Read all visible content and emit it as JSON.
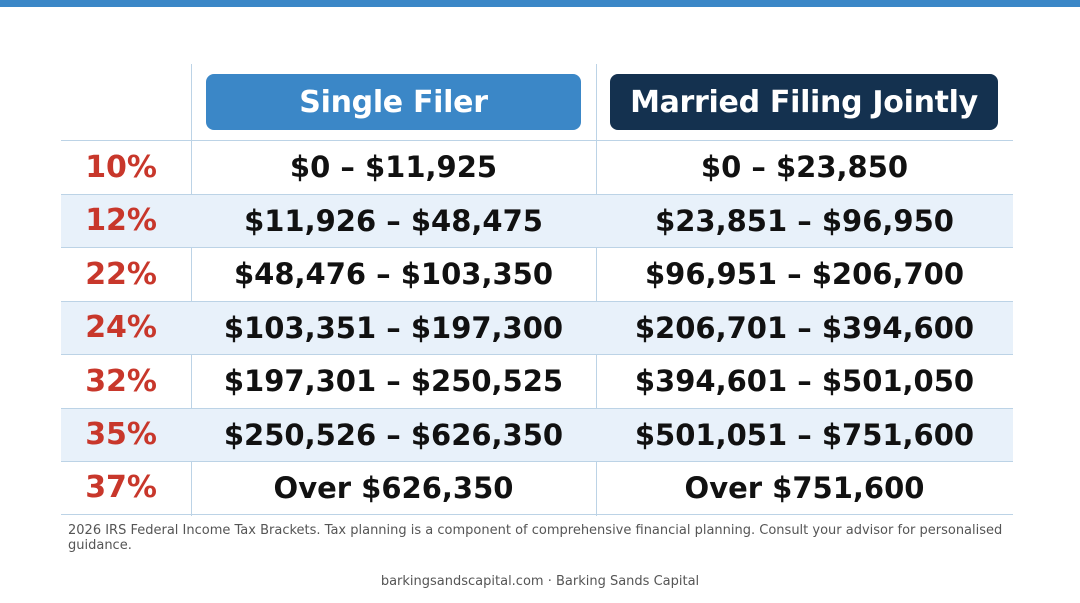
{
  "headers": {
    "single": "Single Filer",
    "married": "Married Filing Jointly"
  },
  "brackets": [
    {
      "rate": "10%",
      "single": "$0 – $11,925",
      "married": "$0 – $23,850"
    },
    {
      "rate": "12%",
      "single": "$11,926 – $48,475",
      "married": "$23,851 – $96,950"
    },
    {
      "rate": "22%",
      "single": "$48,476 – $103,350",
      "married": "$96,951 – $206,700"
    },
    {
      "rate": "24%",
      "single": "$103,351 – $197,300",
      "married": "$206,701 – $394,600"
    },
    {
      "rate": "32%",
      "single": "$197,301 – $250,525",
      "married": "$394,601 – $501,050"
    },
    {
      "rate": "35%",
      "single": "$250,526 – $626,350",
      "married": "$501,051 – $751,600"
    },
    {
      "rate": "37%",
      "single": "Over $626,350",
      "married": "Over $751,600"
    }
  ],
  "footnote": "2026 IRS Federal Income Tax Brackets. Tax planning is a component of comprehensive financial planning. Consult your advisor for personalised guidance.",
  "credit": "barkingsandscapital.com · Barking Sands Capital",
  "colors": {
    "accent_blue": "#3b87c7",
    "navy": "#14314f",
    "rate_red": "#c8372b",
    "row_alt": "#e8f1fa"
  }
}
